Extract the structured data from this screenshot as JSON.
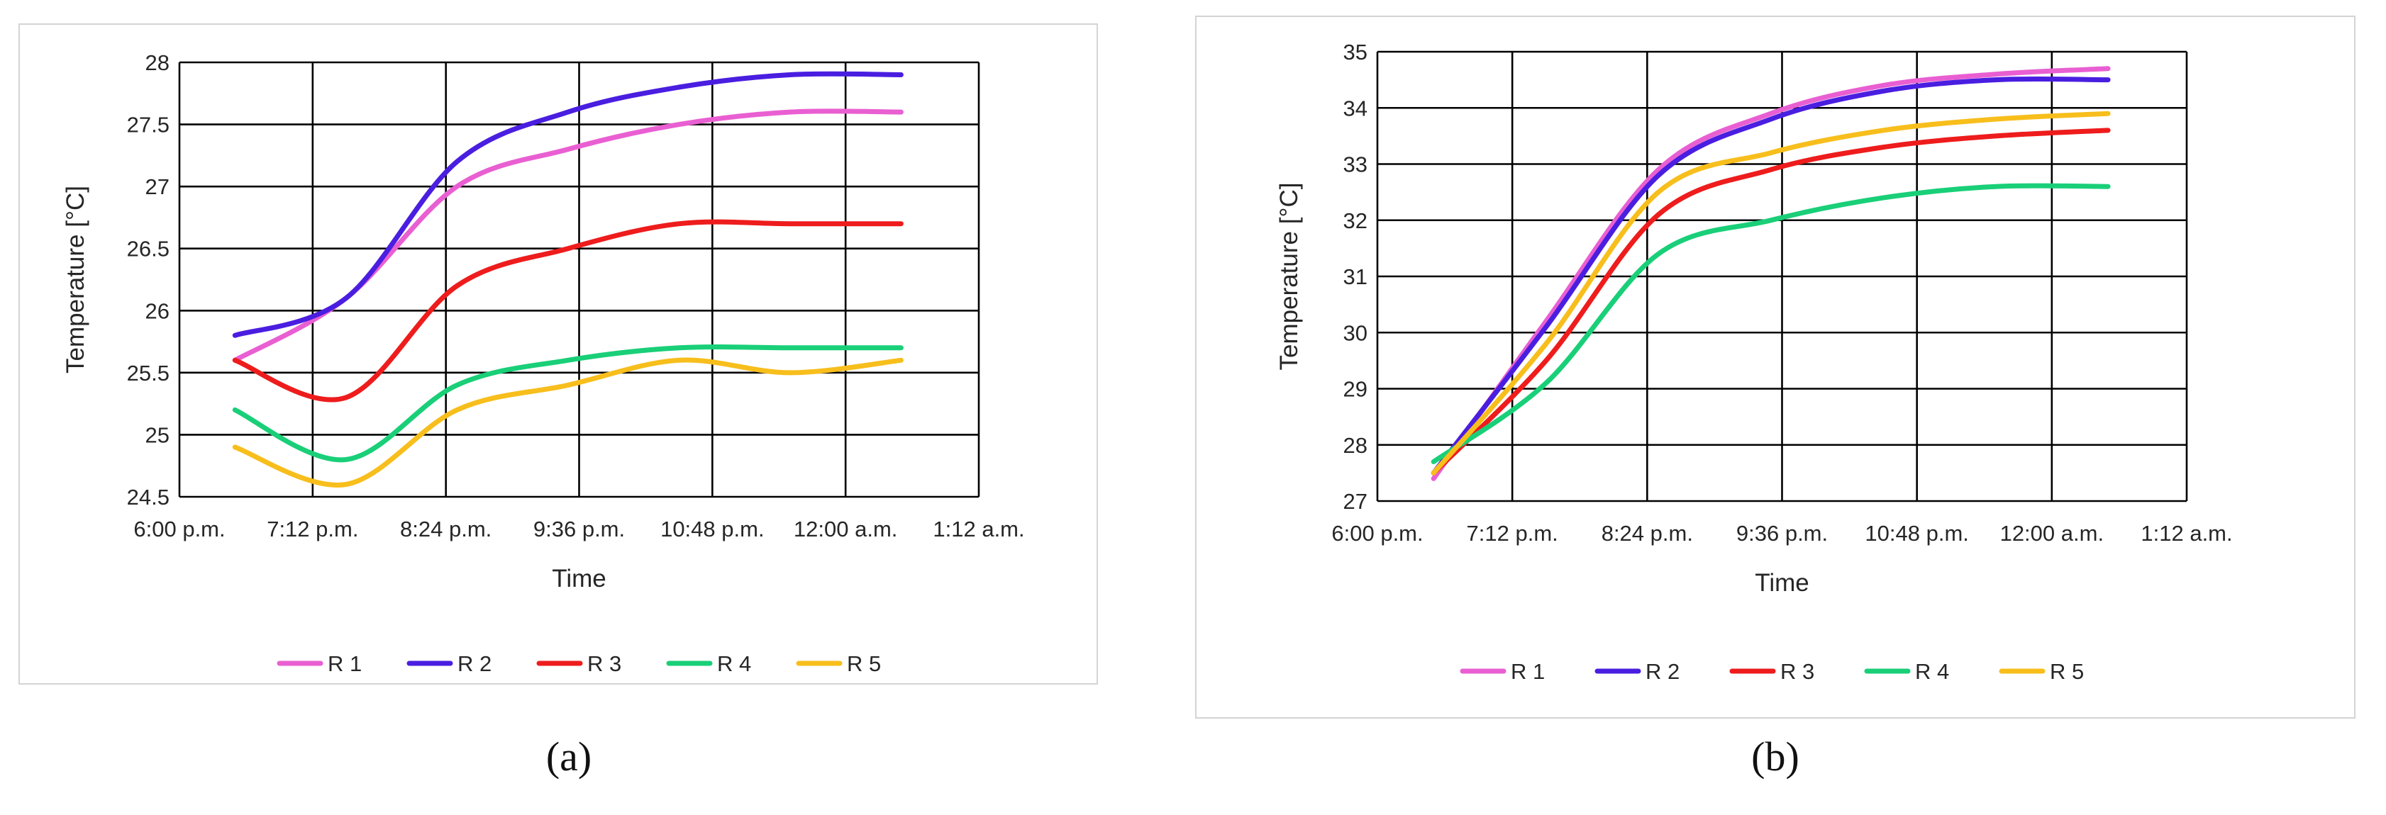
{
  "chart_data": [
    {
      "type": "line",
      "panel_label": "(a)",
      "xlabel": "Time",
      "ylabel": "Temperature [°C]",
      "x_tick_labels": [
        "6:00 p.m.",
        "7:12 p.m.",
        "8:24 p.m.",
        "9:36 p.m.",
        "10:48 p.m.",
        "12:00 a.m.",
        "1:12 a.m."
      ],
      "y_tick_labels": [
        "24.5",
        "25",
        "25.5",
        "26",
        "26.5",
        "27",
        "27.5",
        "28"
      ],
      "xlim": [
        "6:00 p.m.",
        "1:12 a.m."
      ],
      "ylim": [
        24.5,
        28
      ],
      "grid": true,
      "legend_position": "bottom",
      "x": [
        "6:30 p.m.",
        "7:30 p.m.",
        "8:30 p.m.",
        "9:30 p.m.",
        "10:30 p.m.",
        "11:30 p.m.",
        "12:30 a.m."
      ],
      "series": [
        {
          "name": "R 1",
          "color": "#e95fd2",
          "values": [
            25.6,
            26.1,
            27.0,
            27.3,
            27.5,
            27.6,
            27.6
          ]
        },
        {
          "name": "R 2",
          "color": "#4a1ee0",
          "values": [
            25.8,
            26.1,
            27.2,
            27.6,
            27.8,
            27.9,
            27.9
          ]
        },
        {
          "name": "R 3",
          "color": "#ee1c1c",
          "values": [
            25.6,
            25.3,
            26.2,
            26.5,
            26.7,
            26.7,
            26.7
          ]
        },
        {
          "name": "R 4",
          "color": "#19cf78",
          "values": [
            25.2,
            24.8,
            25.4,
            25.6,
            25.7,
            25.7,
            25.7
          ]
        },
        {
          "name": "R 5",
          "color": "#f7be1c",
          "values": [
            24.9,
            24.6,
            25.2,
            25.4,
            25.6,
            25.5,
            25.6
          ]
        }
      ]
    },
    {
      "type": "line",
      "panel_label": "(b)",
      "xlabel": "Time",
      "ylabel": "Temperature [°C]",
      "x_tick_labels": [
        "6:00 p.m.",
        "7:12 p.m.",
        "8:24 p.m.",
        "9:36 p.m.",
        "10:48 p.m.",
        "12:00 a.m.",
        "1:12 a.m."
      ],
      "y_tick_labels": [
        "27",
        "28",
        "29",
        "30",
        "31",
        "32",
        "33",
        "34",
        "35"
      ],
      "xlim": [
        "6:00 p.m.",
        "1:12 a.m."
      ],
      "ylim": [
        27,
        35
      ],
      "grid": true,
      "legend_position": "bottom",
      "x": [
        "6:30 p.m.",
        "7:30 p.m.",
        "8:30 p.m.",
        "9:30 p.m.",
        "10:30 p.m.",
        "11:30 p.m.",
        "12:30 a.m."
      ],
      "series": [
        {
          "name": "R 1",
          "color": "#e95fd2",
          "values": [
            27.4,
            30.2,
            32.9,
            33.9,
            34.4,
            34.6,
            34.7
          ]
        },
        {
          "name": "R 2",
          "color": "#4a1ee0",
          "values": [
            27.5,
            30.1,
            32.8,
            33.8,
            34.3,
            34.5,
            34.5
          ]
        },
        {
          "name": "R 3",
          "color": "#ee1c1c",
          "values": [
            27.5,
            29.5,
            32.1,
            32.9,
            33.3,
            33.5,
            33.6
          ]
        },
        {
          "name": "R 4",
          "color": "#19cf78",
          "values": [
            27.7,
            29.1,
            31.4,
            32.0,
            32.4,
            32.6,
            32.6
          ]
        },
        {
          "name": "R 5",
          "color": "#f7be1c",
          "values": [
            27.5,
            29.8,
            32.5,
            33.2,
            33.6,
            33.8,
            33.9
          ]
        }
      ]
    }
  ]
}
